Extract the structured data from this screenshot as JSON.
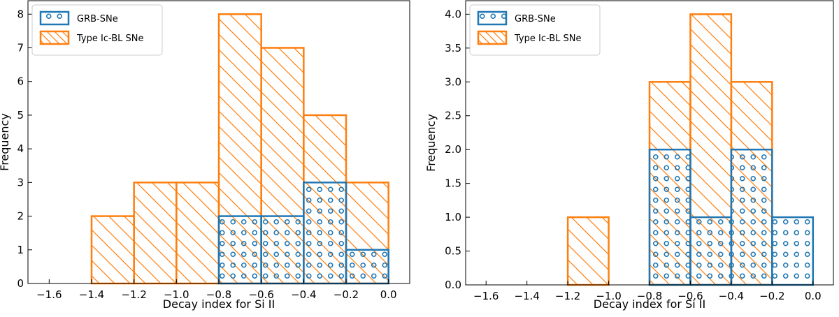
{
  "colors": {
    "grb": "#1f77b4",
    "typeic": "#ff7f0e"
  },
  "chart_data": [
    {
      "type": "bar",
      "subtype": "histogram",
      "xlabel": "Decay index for Si II",
      "ylabel": "Frequency",
      "xlim": [
        -1.7,
        0.1
      ],
      "ylim": [
        0,
        8.4
      ],
      "xticks": [
        -1.6,
        -1.4,
        -1.2,
        -1.0,
        -0.8,
        -0.6,
        -0.4,
        -0.2,
        0.0
      ],
      "xtick_labels": [
        "−1.6",
        "−1.4",
        "−1.2",
        "−1.0",
        "−0.8",
        "−0.6",
        "−0.4",
        "−0.2",
        "0.0"
      ],
      "yticks": [
        0,
        1,
        2,
        3,
        4,
        5,
        6,
        7,
        8
      ],
      "ytick_labels": [
        "0",
        "1",
        "2",
        "3",
        "4",
        "5",
        "6",
        "7",
        "8"
      ],
      "legend_position": "top-left",
      "series": [
        {
          "name": "Type Ic-BL SNe",
          "color": "#ff7f0e",
          "hatch": "diagonal",
          "bins": [
            [
              -1.4,
              -1.2,
              2
            ],
            [
              -1.2,
              -1.0,
              3
            ],
            [
              -1.0,
              -0.8,
              3
            ],
            [
              -0.8,
              -0.6,
              8
            ],
            [
              -0.6,
              -0.4,
              7
            ],
            [
              -0.4,
              -0.2,
              5
            ],
            [
              -0.2,
              0.0,
              3
            ]
          ]
        },
        {
          "name": "GRB-SNe",
          "color": "#1f77b4",
          "hatch": "circles",
          "bins": [
            [
              -0.8,
              -0.6,
              2
            ],
            [
              -0.6,
              -0.4,
              2
            ],
            [
              -0.4,
              -0.2,
              3
            ],
            [
              -0.2,
              0.0,
              1
            ]
          ]
        }
      ],
      "legend_order": [
        "GRB-SNe",
        "Type Ic-BL SNe"
      ]
    },
    {
      "type": "bar",
      "subtype": "histogram",
      "xlabel": "Decay index for Si II",
      "ylabel": "Frequency",
      "xlim": [
        -1.7,
        0.1
      ],
      "ylim": [
        0,
        4.2
      ],
      "xticks": [
        -1.6,
        -1.4,
        -1.2,
        -1.0,
        -0.8,
        -0.6,
        -0.4,
        -0.2,
        0.0
      ],
      "xtick_labels": [
        "−1.6",
        "−1.4",
        "−1.2",
        "−1.0",
        "−0.8",
        "−0.6",
        "−0.4",
        "−0.2",
        "0.0"
      ],
      "yticks": [
        0,
        0.5,
        1.0,
        1.5,
        2.0,
        2.5,
        3.0,
        3.5,
        4.0
      ],
      "ytick_labels": [
        "0.0",
        "0.5",
        "1.0",
        "1.5",
        "2.0",
        "2.5",
        "3.0",
        "3.5",
        "4.0"
      ],
      "legend_position": "top-left",
      "series": [
        {
          "name": "Type Ic-BL SNe",
          "color": "#ff7f0e",
          "hatch": "diagonal",
          "bins": [
            [
              -1.2,
              -1.0,
              1
            ],
            [
              -0.8,
              -0.6,
              3
            ],
            [
              -0.6,
              -0.4,
              4
            ],
            [
              -0.4,
              -0.2,
              3
            ]
          ]
        },
        {
          "name": "GRB-SNe",
          "color": "#1f77b4",
          "hatch": "circles",
          "bins": [
            [
              -0.8,
              -0.6,
              2
            ],
            [
              -0.6,
              -0.4,
              1
            ],
            [
              -0.4,
              -0.2,
              2
            ],
            [
              -0.2,
              0.0,
              1
            ]
          ]
        }
      ],
      "legend_order": [
        "GRB-SNe",
        "Type Ic-BL SNe"
      ]
    }
  ]
}
